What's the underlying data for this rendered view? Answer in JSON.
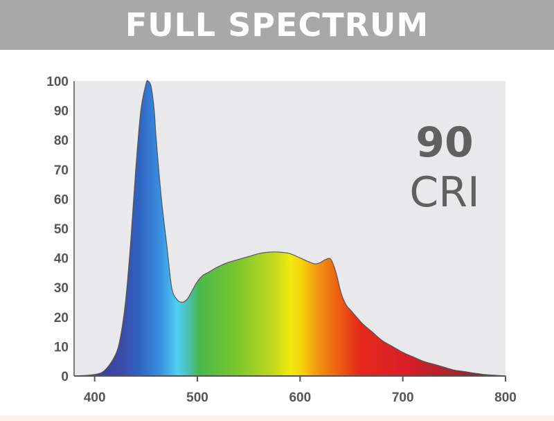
{
  "banner": {
    "title": "FULL SPECTRUM"
  },
  "badge": {
    "value": "90",
    "label": "CRI"
  },
  "colors": {
    "banner": "#a8a8a8",
    "plot_background": "#e9e9eb",
    "axis": "#555555",
    "tick_label": "#555555",
    "badge_text": "#606060",
    "spectrum_outline": "#555555"
  },
  "chart_data": {
    "type": "area",
    "title": "",
    "xlabel": "",
    "ylabel": "",
    "xlim": [
      380,
      800
    ],
    "ylim": [
      0,
      100
    ],
    "x_ticks": [
      400,
      500,
      600,
      700,
      800
    ],
    "y_ticks": [
      0,
      10,
      20,
      30,
      40,
      50,
      60,
      70,
      80,
      90,
      100
    ],
    "grid": false,
    "legend": "none",
    "fill": "visible-spectrum gradient (violet-blue to red)",
    "series": [
      {
        "x": [
          380,
          400,
          410,
          420,
          425,
          430,
          435,
          440,
          445,
          450,
          452,
          455,
          458,
          460,
          465,
          470,
          475,
          480,
          485,
          490,
          495,
          500,
          505,
          510,
          520,
          530,
          540,
          550,
          560,
          570,
          580,
          590,
          600,
          610,
          615,
          620,
          625,
          630,
          635,
          640,
          645,
          650,
          660,
          670,
          680,
          690,
          700,
          710,
          720,
          730,
          740,
          750,
          760,
          780,
          800
        ],
        "y": [
          0,
          0.5,
          2,
          7,
          13,
          25,
          45,
          70,
          90,
          99,
          100,
          98,
          90,
          80,
          60,
          45,
          30,
          26,
          25,
          26,
          29,
          32,
          34,
          35,
          37,
          38.5,
          39.5,
          40.5,
          41.5,
          42,
          42,
          41.5,
          40,
          38.5,
          38,
          38.5,
          39.5,
          39.5,
          35,
          28,
          24,
          22,
          18,
          15,
          12,
          10,
          8,
          6.5,
          5,
          4,
          3,
          2,
          1.5,
          0.5,
          0
        ]
      }
    ]
  }
}
